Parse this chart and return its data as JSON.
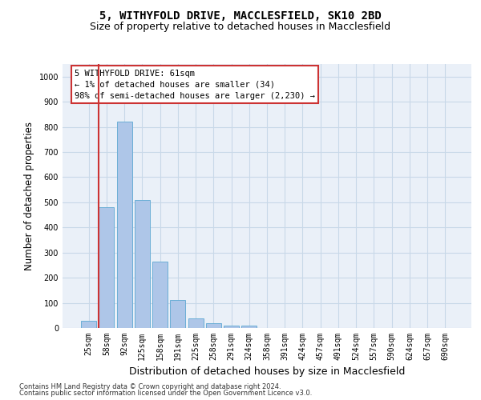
{
  "title_line1": "5, WITHYFOLD DRIVE, MACCLESFIELD, SK10 2BD",
  "title_line2": "Size of property relative to detached houses in Macclesfield",
  "xlabel": "Distribution of detached houses by size in Macclesfield",
  "ylabel": "Number of detached properties",
  "footnote1": "Contains HM Land Registry data © Crown copyright and database right 2024.",
  "footnote2": "Contains public sector information licensed under the Open Government Licence v3.0.",
  "bar_labels": [
    "25sqm",
    "58sqm",
    "92sqm",
    "125sqm",
    "158sqm",
    "191sqm",
    "225sqm",
    "258sqm",
    "291sqm",
    "324sqm",
    "358sqm",
    "391sqm",
    "424sqm",
    "457sqm",
    "491sqm",
    "524sqm",
    "557sqm",
    "590sqm",
    "624sqm",
    "657sqm",
    "690sqm"
  ],
  "bar_values": [
    30,
    480,
    820,
    510,
    265,
    110,
    38,
    18,
    10,
    10,
    0,
    0,
    0,
    0,
    0,
    0,
    0,
    0,
    0,
    0,
    0
  ],
  "bar_color": "#aec6e8",
  "bar_edgecolor": "#6baed6",
  "highlight_color": "#cc3333",
  "annotation_box_text": "5 WITHYFOLD DRIVE: 61sqm\n← 1% of detached houses are smaller (34)\n98% of semi-detached houses are larger (2,230) →",
  "ylim": [
    0,
    1050
  ],
  "yticks": [
    0,
    100,
    200,
    300,
    400,
    500,
    600,
    700,
    800,
    900,
    1000
  ],
  "grid_color": "#c8d8e8",
  "bg_color": "#eaf0f8",
  "title_fontsize": 10,
  "subtitle_fontsize": 9,
  "axis_label_fontsize": 8.5,
  "tick_fontsize": 7,
  "annot_fontsize": 7.5
}
